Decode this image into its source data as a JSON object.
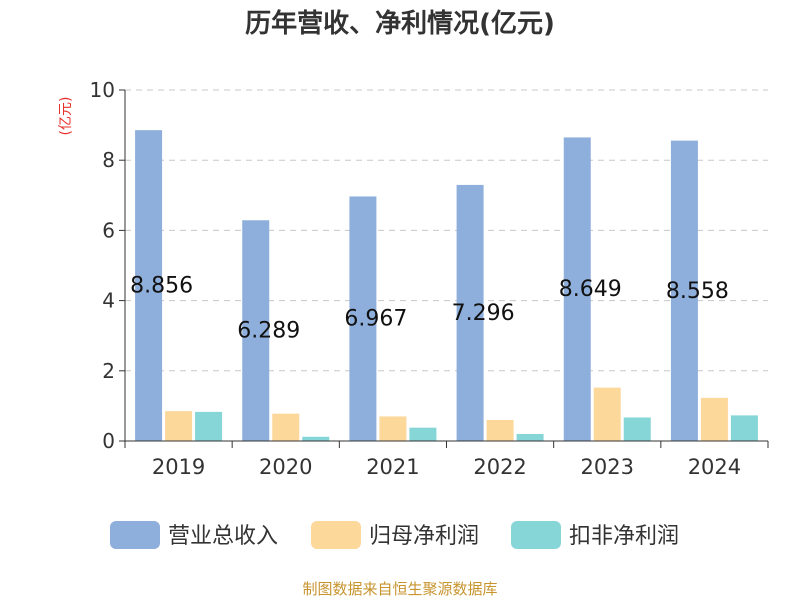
{
  "chart_data": {
    "type": "bar",
    "title": "历年营收、净利情况(亿元)",
    "unit_label": "(亿元)",
    "categories": [
      "2019",
      "2020",
      "2021",
      "2022",
      "2023",
      "2024"
    ],
    "series": [
      {
        "name": "营业总收入",
        "color": "#8eafdb",
        "values": [
          8.856,
          6.289,
          6.967,
          7.296,
          8.649,
          8.558
        ]
      },
      {
        "name": "归母净利润",
        "color": "#fdd89b",
        "values": [
          0.85,
          0.78,
          0.7,
          0.6,
          1.52,
          1.23
        ]
      },
      {
        "name": "扣非净利润",
        "color": "#86d6d8",
        "values": [
          0.83,
          0.12,
          0.38,
          0.2,
          0.67,
          0.73
        ]
      }
    ],
    "data_labels": [
      "8.856",
      "6.289",
      "6.967",
      "7.296",
      "8.649",
      "8.558"
    ],
    "ylim": [
      0,
      10
    ],
    "yticks": [
      "0",
      "2",
      "4",
      "6",
      "8",
      "10"
    ],
    "grid": true,
    "legend_position": "bottom"
  },
  "source_text": "制图数据来自恒生聚源数据库"
}
